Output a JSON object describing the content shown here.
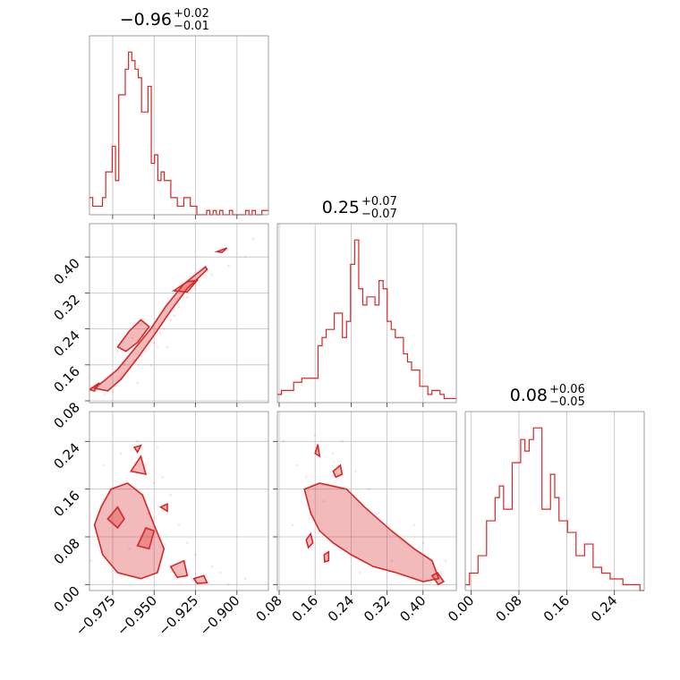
{
  "colors": {
    "series": "#d62728",
    "grid": "#bfbfbf",
    "frame": "#888888"
  },
  "chart_data": {
    "type": "corner",
    "parameters": [
      {
        "title": {
          "median": "−0.96",
          "plus": "+0.02",
          "minus": "−0.01"
        },
        "range": [
          -0.989,
          -0.881
        ],
        "ticks": [
          -0.975,
          -0.95,
          -0.925,
          -0.9
        ],
        "tick_labels": [
          "−0.975",
          "−0.950",
          "−0.925",
          "−0.900"
        ]
      },
      {
        "title": {
          "median": "0.25",
          "plus": "+0.07",
          "minus": "−0.07"
        },
        "range": [
          0.076,
          0.474
        ],
        "ticks": [
          0.08,
          0.16,
          0.24,
          0.32,
          0.4
        ],
        "tick_labels": [
          "0.08",
          "0.16",
          "0.24",
          "0.32",
          "0.40"
        ]
      },
      {
        "title": {
          "median": "0.08",
          "plus": "+0.06",
          "minus": "−0.05"
        },
        "range": [
          -0.01,
          0.29
        ],
        "ticks": [
          0.0,
          0.08,
          0.16,
          0.24
        ],
        "tick_labels": [
          "0.00",
          "0.08",
          "0.16",
          "0.24"
        ]
      }
    ],
    "histograms": [
      {
        "param": 0,
        "x_start": -0.989,
        "x_end": -0.881,
        "counts": [
          4,
          2,
          2,
          2,
          4,
          10,
          10,
          16,
          8,
          28,
          28,
          34,
          38,
          36,
          34,
          32,
          24,
          24,
          30,
          12,
          14,
          8,
          10,
          8,
          8,
          4,
          4,
          2,
          2,
          4,
          4,
          2,
          2,
          0,
          0,
          0,
          1,
          0,
          1,
          0,
          1,
          0,
          0,
          1,
          0,
          0,
          0,
          0,
          1,
          0,
          1,
          0,
          0,
          1,
          1
        ]
      },
      {
        "param": 1,
        "x_start": 0.076,
        "x_end": 0.474,
        "counts": [
          2,
          3,
          3,
          3,
          5,
          5,
          6,
          6,
          6,
          6,
          14,
          16,
          18,
          18,
          22,
          22,
          16,
          20,
          34,
          40,
          28,
          24,
          26,
          26,
          24,
          30,
          28,
          20,
          18,
          16,
          16,
          12,
          10,
          8,
          8,
          4,
          4,
          2,
          3,
          3,
          2,
          1,
          1,
          1
        ]
      },
      {
        "param": 2,
        "x_start": -0.01,
        "x_end": 0.29,
        "counts": [
          1,
          3,
          3,
          6,
          6,
          12,
          12,
          16,
          18,
          14,
          14,
          22,
          22,
          26,
          24,
          26,
          28,
          28,
          14,
          14,
          20,
          16,
          12,
          12,
          10,
          10,
          6,
          6,
          8,
          8,
          4,
          4,
          3,
          3,
          2,
          2,
          2,
          1,
          1,
          1,
          1,
          0
        ]
      }
    ],
    "scatter_panels": [
      {
        "x_param": 0,
        "y_param": 1,
        "contours": [
          [
            [
              -0.986,
              0.108
            ],
            [
              -0.98,
              0.125
            ],
            [
              -0.972,
              0.15
            ],
            [
              -0.962,
              0.195
            ],
            [
              -0.952,
              0.24
            ],
            [
              -0.943,
              0.29
            ],
            [
              -0.932,
              0.34
            ],
            [
              -0.919,
              0.378
            ],
            [
              -0.918,
              0.372
            ],
            [
              -0.93,
              0.33
            ],
            [
              -0.94,
              0.28
            ],
            [
              -0.95,
              0.226
            ],
            [
              -0.96,
              0.175
            ],
            [
              -0.97,
              0.128
            ],
            [
              -0.978,
              0.102
            ]
          ],
          [
            [
              -0.972,
              0.2
            ],
            [
              -0.965,
              0.235
            ],
            [
              -0.958,
              0.26
            ],
            [
              -0.953,
              0.245
            ],
            [
              -0.96,
              0.21
            ],
            [
              -0.967,
              0.19
            ]
          ],
          [
            [
              -0.938,
              0.325
            ],
            [
              -0.93,
              0.345
            ],
            [
              -0.924,
              0.348
            ],
            [
              -0.93,
              0.322
            ]
          ],
          [
            [
              -0.912,
              0.412
            ],
            [
              -0.906,
              0.42
            ],
            [
              -0.909,
              0.41
            ]
          ],
          [
            [
              -0.989,
              0.105
            ],
            [
              -0.983,
              0.12
            ],
            [
              -0.986,
              0.102
            ]
          ]
        ],
        "samples": [
          [
            -0.985,
            0.11
          ],
          [
            -0.97,
            0.13
          ],
          [
            -0.968,
            0.16
          ],
          [
            -0.962,
            0.17
          ],
          [
            -0.955,
            0.19
          ],
          [
            -0.95,
            0.21
          ],
          [
            -0.948,
            0.2
          ],
          [
            -0.958,
            0.18
          ],
          [
            -0.965,
            0.15
          ],
          [
            -0.944,
            0.24
          ],
          [
            -0.94,
            0.26
          ],
          [
            -0.935,
            0.29
          ],
          [
            -0.96,
            0.12
          ],
          [
            -0.975,
            0.1
          ],
          [
            -0.98,
            0.095
          ],
          [
            -0.952,
            0.16
          ],
          [
            -0.946,
            0.23
          ],
          [
            -0.93,
            0.31
          ],
          [
            -0.925,
            0.33
          ],
          [
            -0.915,
            0.36
          ],
          [
            -0.905,
            0.38
          ],
          [
            -0.895,
            0.4
          ],
          [
            -0.89,
            0.44
          ],
          [
            -0.958,
            0.25
          ],
          [
            -0.972,
            0.19
          ],
          [
            -0.963,
            0.22
          ],
          [
            -0.938,
            0.27
          ],
          [
            -0.942,
            0.2
          ]
        ]
      },
      {
        "x_param": 0,
        "y_param": 2,
        "contours": [
          [
            [
              -0.986,
              0.1
            ],
            [
              -0.982,
              0.13
            ],
            [
              -0.976,
              0.16
            ],
            [
              -0.966,
              0.17
            ],
            [
              -0.957,
              0.15
            ],
            [
              -0.95,
              0.1
            ],
            [
              -0.944,
              0.06
            ],
            [
              -0.948,
              0.02
            ],
            [
              -0.958,
              0.01
            ],
            [
              -0.972,
              0.02
            ],
            [
              -0.981,
              0.05
            ]
          ],
          [
            [
              -0.964,
              0.19
            ],
            [
              -0.958,
              0.215
            ],
            [
              -0.955,
              0.185
            ]
          ],
          [
            [
              -0.962,
              0.23
            ],
            [
              -0.958,
              0.233
            ],
            [
              -0.96,
              0.222
            ]
          ],
          [
            [
              -0.94,
              0.03
            ],
            [
              -0.932,
              0.04
            ],
            [
              -0.93,
              0.015
            ],
            [
              -0.936,
              0.012
            ]
          ],
          [
            [
              -0.926,
              0.01
            ],
            [
              -0.92,
              0.015
            ],
            [
              -0.918,
              0.003
            ],
            [
              -0.924,
              0.002
            ]
          ],
          [
            [
              -0.946,
              0.13
            ],
            [
              -0.942,
              0.135
            ],
            [
              -0.942,
              0.123
            ]
          ],
          [
            [
              -0.96,
              0.065
            ],
            [
              -0.955,
              0.095
            ],
            [
              -0.95,
              0.09
            ],
            [
              -0.953,
              0.06
            ]
          ],
          [
            [
              -0.978,
              0.11
            ],
            [
              -0.972,
              0.13
            ],
            [
              -0.968,
              0.11
            ],
            [
              -0.972,
              0.095
            ]
          ]
        ],
        "samples": [
          [
            -0.98,
            0.2
          ],
          [
            -0.97,
            0.22
          ],
          [
            -0.955,
            0.2
          ],
          [
            -0.945,
            0.18
          ],
          [
            -0.935,
            0.1
          ],
          [
            -0.925,
            0.05
          ],
          [
            -0.915,
            0.03
          ],
          [
            -0.905,
            0.0
          ],
          [
            -0.895,
            0.01
          ],
          [
            -0.94,
            0.15
          ],
          [
            -0.95,
            0.17
          ],
          [
            -0.965,
            0.06
          ],
          [
            -0.988,
            0.04
          ],
          [
            -0.93,
            0.07
          ],
          [
            -0.91,
            0.02
          ],
          [
            -0.96,
            0.24
          ],
          [
            -0.948,
            0.23
          ],
          [
            -0.975,
            0.005
          ]
        ]
      },
      {
        "x_param": 1,
        "y_param": 2,
        "contours": [
          [
            [
              0.136,
              0.16
            ],
            [
              0.17,
              0.17
            ],
            [
              0.23,
              0.16
            ],
            [
              0.27,
              0.13
            ],
            [
              0.33,
              0.09
            ],
            [
              0.38,
              0.06
            ],
            [
              0.42,
              0.04
            ],
            [
              0.435,
              0.01
            ],
            [
              0.4,
              0.005
            ],
            [
              0.34,
              0.02
            ],
            [
              0.29,
              0.03
            ],
            [
              0.24,
              0.05
            ],
            [
              0.2,
              0.07
            ],
            [
              0.17,
              0.09
            ],
            [
              0.15,
              0.12
            ]
          ],
          [
            [
              0.16,
              0.22
            ],
            [
              0.166,
              0.235
            ],
            [
              0.17,
              0.215
            ]
          ],
          [
            [
              0.2,
              0.19
            ],
            [
              0.216,
              0.2
            ],
            [
              0.22,
              0.185
            ],
            [
              0.206,
              0.18
            ]
          ],
          [
            [
              0.42,
              0.015
            ],
            [
              0.432,
              0.02
            ],
            [
              0.446,
              0.005
            ],
            [
              0.434,
              0.0
            ]
          ],
          [
            [
              0.14,
              0.075
            ],
            [
              0.15,
              0.085
            ],
            [
              0.155,
              0.07
            ],
            [
              0.145,
              0.062
            ]
          ],
          [
            [
              0.18,
              0.05
            ],
            [
              0.19,
              0.055
            ],
            [
              0.19,
              0.04
            ],
            [
              0.181,
              0.038
            ]
          ]
        ],
        "samples": [
          [
            0.09,
            0.24
          ],
          [
            0.12,
            0.2
          ],
          [
            0.14,
            0.18
          ],
          [
            0.2,
            0.22
          ],
          [
            0.25,
            0.19
          ],
          [
            0.3,
            0.12
          ],
          [
            0.35,
            0.08
          ],
          [
            0.4,
            0.07
          ],
          [
            0.44,
            0.02
          ],
          [
            0.16,
            0.25
          ],
          [
            0.28,
            0.16
          ],
          [
            0.33,
            0.04
          ],
          [
            0.26,
            0.02
          ],
          [
            0.38,
            0.1
          ],
          [
            0.22,
            0.24
          ],
          [
            0.18,
            0.14
          ],
          [
            0.45,
            0.04
          ],
          [
            0.11,
            0.1
          ]
        ]
      }
    ]
  }
}
